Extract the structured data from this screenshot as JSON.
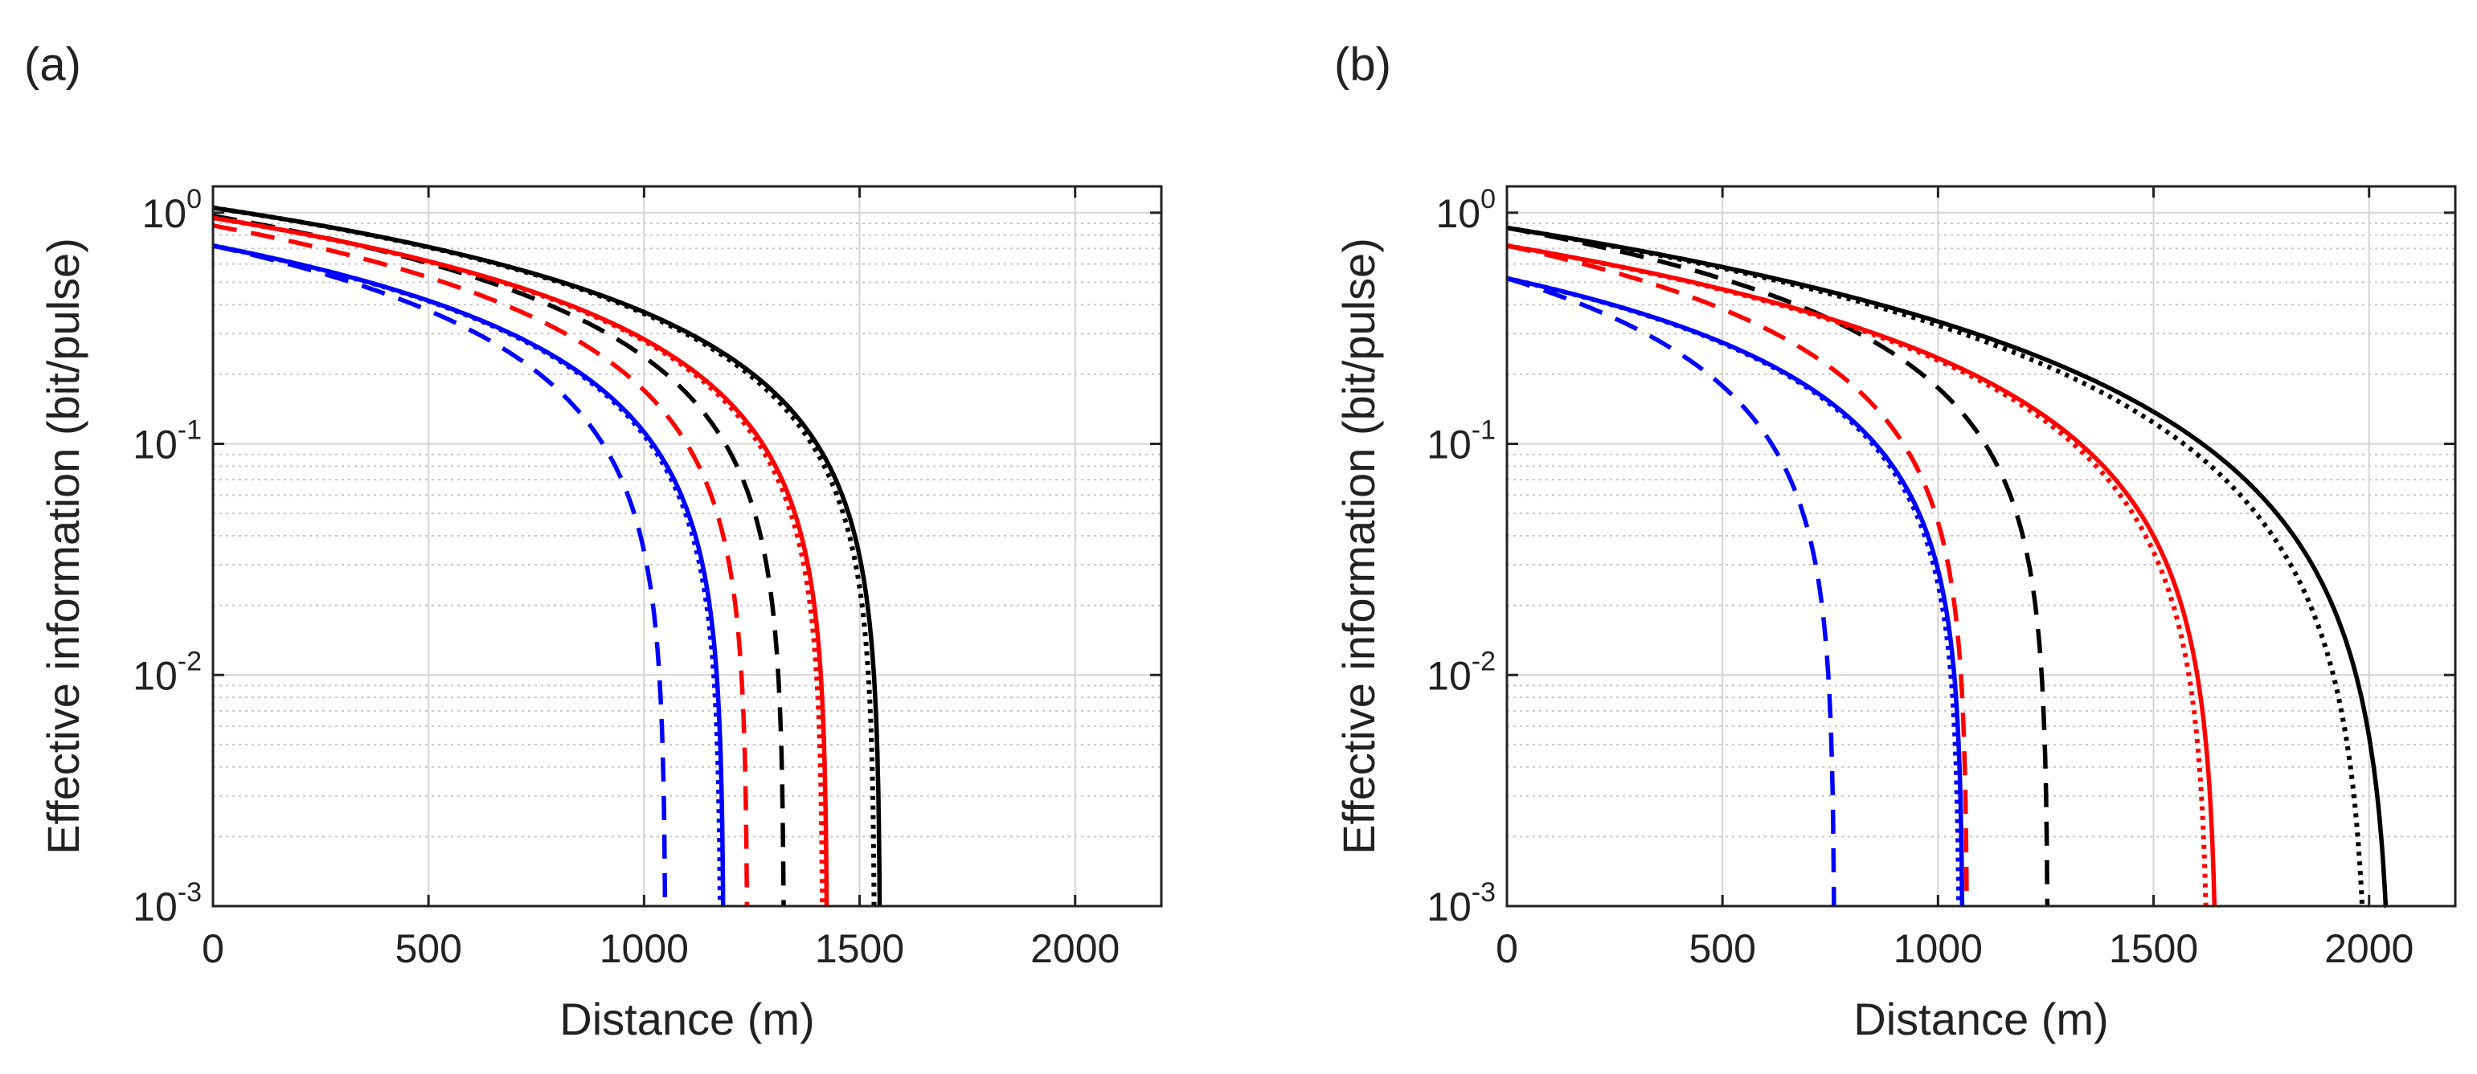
{
  "chart_data": [
    {
      "type": "line",
      "panel_label": "(a)",
      "xlabel": "Distance (m)",
      "ylabel": "Effective information (bit/pulse)",
      "xscale": "linear",
      "yscale": "log",
      "xlim": [
        0,
        2200
      ],
      "ylim": [
        0.001,
        1.3
      ],
      "x_ticks": [
        "0",
        "500",
        "1000",
        "1500",
        "2000"
      ],
      "x_tick_values": [
        0,
        500,
        1000,
        1500,
        2000
      ],
      "y_ticks": [
        {
          "base": "10",
          "exp": "0",
          "value": 1
        },
        {
          "base": "10",
          "exp": "-1",
          "value": 0.1
        },
        {
          "base": "10",
          "exp": "-2",
          "value": 0.01
        },
        {
          "base": "10",
          "exp": "-3",
          "value": 0.001
        }
      ],
      "grid": true,
      "series": [
        {
          "name": "black solid",
          "color": "#000000",
          "style": "solid",
          "x0": 0,
          "y0": 1.05,
          "xmax": 1548,
          "k": 1.0
        },
        {
          "name": "black dotted",
          "color": "#000000",
          "style": "dotted",
          "x0": 0,
          "y0": 1.05,
          "xmax": 1535,
          "k": 1.0
        },
        {
          "name": "black dashed",
          "color": "#000000",
          "style": "dashed",
          "x0": 0,
          "y0": 0.97,
          "xmax": 1325,
          "k": 1.0
        },
        {
          "name": "red solid",
          "color": "#ff0000",
          "style": "solid",
          "x0": 0,
          "y0": 0.95,
          "xmax": 1425,
          "k": 1.0
        },
        {
          "name": "red dotted",
          "color": "#ff0000",
          "style": "dotted",
          "x0": 0,
          "y0": 0.95,
          "xmax": 1415,
          "k": 1.0
        },
        {
          "name": "red dashed",
          "color": "#ff0000",
          "style": "dashed",
          "x0": 0,
          "y0": 0.88,
          "xmax": 1240,
          "k": 1.0
        },
        {
          "name": "blue solid",
          "color": "#0000ff",
          "style": "solid",
          "x0": 0,
          "y0": 0.72,
          "xmax": 1185,
          "k": 1.0
        },
        {
          "name": "blue dotted",
          "color": "#0000ff",
          "style": "dotted",
          "x0": 0,
          "y0": 0.72,
          "xmax": 1178,
          "k": 1.0
        },
        {
          "name": "blue dashed",
          "color": "#0000ff",
          "style": "dashed",
          "x0": 0,
          "y0": 0.72,
          "xmax": 1050,
          "k": 1.0
        }
      ]
    },
    {
      "type": "line",
      "panel_label": "(b)",
      "xlabel": "Distance (m)",
      "ylabel": "Effective information (bit/pulse)",
      "xscale": "linear",
      "yscale": "log",
      "xlim": [
        0,
        2200
      ],
      "ylim": [
        0.001,
        1.3
      ],
      "x_ticks": [
        "0",
        "500",
        "1000",
        "1500",
        "2000"
      ],
      "x_tick_values": [
        0,
        500,
        1000,
        1500,
        2000
      ],
      "y_ticks": [
        {
          "base": "10",
          "exp": "0",
          "value": 1
        },
        {
          "base": "10",
          "exp": "-1",
          "value": 0.1
        },
        {
          "base": "10",
          "exp": "-2",
          "value": 0.01
        },
        {
          "base": "10",
          "exp": "-3",
          "value": 0.001
        }
      ],
      "grid": true,
      "series": [
        {
          "name": "black solid",
          "color": "#000000",
          "style": "solid",
          "x0": 0,
          "y0": 0.86,
          "xmax": 2055,
          "k": 1.4
        },
        {
          "name": "black dotted",
          "color": "#000000",
          "style": "dotted",
          "x0": 0,
          "y0": 0.86,
          "xmax": 2000,
          "k": 1.4
        },
        {
          "name": "black dashed",
          "color": "#000000",
          "style": "dashed",
          "x0": 0,
          "y0": 0.86,
          "xmax": 1255,
          "k": 1.0
        },
        {
          "name": "red solid",
          "color": "#ff0000",
          "style": "solid",
          "x0": 0,
          "y0": 0.72,
          "xmax": 1648,
          "k": 1.2
        },
        {
          "name": "red dotted",
          "color": "#ff0000",
          "style": "dotted",
          "x0": 0,
          "y0": 0.72,
          "xmax": 1628,
          "k": 1.2
        },
        {
          "name": "red dashed",
          "color": "#ff0000",
          "style": "dashed",
          "x0": 0,
          "y0": 0.72,
          "xmax": 1068,
          "k": 1.0
        },
        {
          "name": "blue solid",
          "color": "#0000ff",
          "style": "solid",
          "x0": 0,
          "y0": 0.52,
          "xmax": 1058,
          "k": 1.0
        },
        {
          "name": "blue dotted",
          "color": "#0000ff",
          "style": "dotted",
          "x0": 0,
          "y0": 0.52,
          "xmax": 1050,
          "k": 1.0
        },
        {
          "name": "blue dashed",
          "color": "#0000ff",
          "style": "dashed",
          "x0": 0,
          "y0": 0.52,
          "xmax": 760,
          "k": 1.0
        }
      ]
    }
  ]
}
